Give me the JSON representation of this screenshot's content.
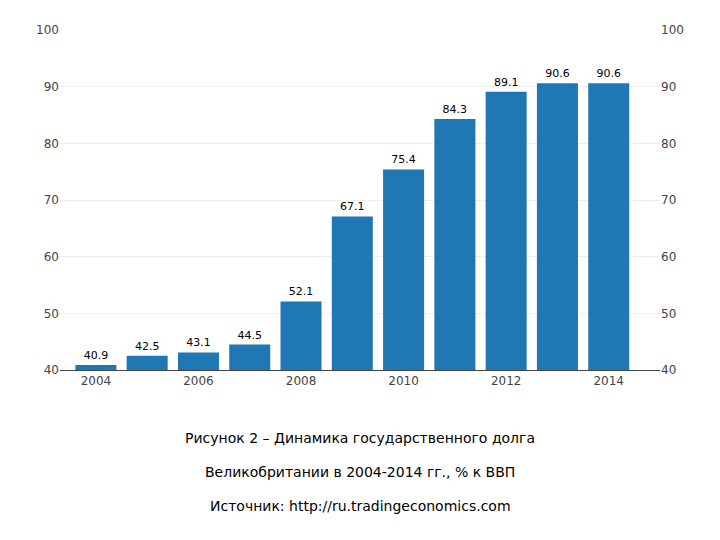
{
  "chart_data": {
    "type": "bar",
    "annotations": [
      "Рисунок 2 – Динамика государственного долга",
      "Великобритании в 2004-2014 гг., % к ВВП",
      "Источник: http://ru.tradingeconomics.com"
    ],
    "x": [
      2004,
      2005,
      2006,
      2007,
      2008,
      2009,
      2010,
      2011,
      2012,
      2013,
      2014
    ],
    "values": [
      40.9,
      42.5,
      43.1,
      44.5,
      52.1,
      67.1,
      75.4,
      84.3,
      89.1,
      90.6,
      90.6
    ],
    "xlim": [
      2003.3,
      2015.0
    ],
    "xticks": [
      2004,
      2006,
      2008,
      2010,
      2012,
      2014
    ],
    "ylim": [
      40,
      100
    ],
    "yticks": [
      40,
      50,
      60,
      70,
      80,
      90,
      100
    ],
    "y2lim": [
      40,
      100
    ],
    "y2ticks": [
      40,
      50,
      60,
      70,
      80,
      90,
      100
    ],
    "grid": true,
    "data_labels": true
  }
}
